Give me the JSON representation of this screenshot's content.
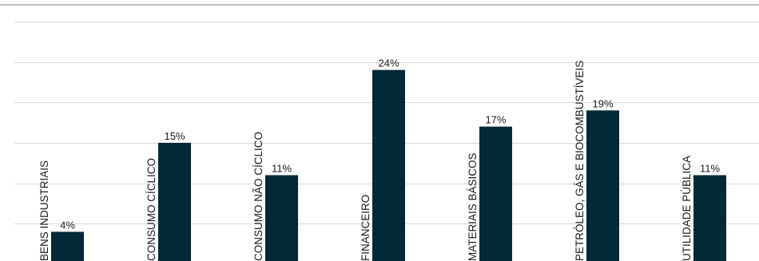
{
  "chart_data": {
    "type": "bar",
    "categories": [
      "BENS INDUSTRIAIS",
      "CONSUMO CÍCLICO",
      "CONSUMO NÃO CÍCLICO",
      "FINANCEIRO",
      "MATERIAIS BÁSICOS",
      "PETRÓLEO, GÁS E BIOCOMBUSTÍVEIS",
      "UTILIDADE PÚBLICA"
    ],
    "values": [
      4,
      15,
      11,
      24,
      17,
      19,
      11
    ],
    "value_labels": [
      "4%",
      "15%",
      "11%",
      "24%",
      "17%",
      "19%",
      "11%"
    ],
    "ylim": [
      0,
      27
    ],
    "grid": true,
    "bar_color": "#032836",
    "grid_color": "#d9d9d9",
    "baseline_color": "#8a8a8a"
  }
}
